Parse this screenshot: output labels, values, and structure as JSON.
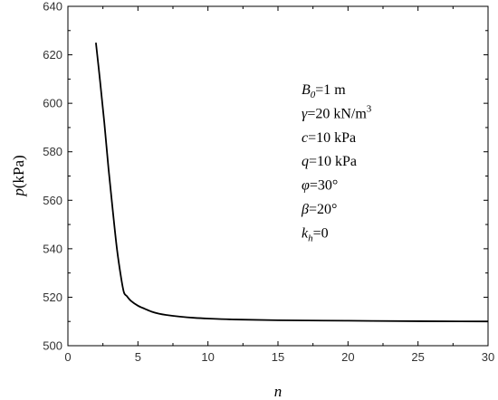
{
  "chart_data": {
    "type": "line",
    "xlim": [
      0,
      30
    ],
    "ylim": [
      500,
      640
    ],
    "x_ticks": [
      "0",
      "5",
      "10",
      "15",
      "20",
      "25",
      "30"
    ],
    "y_ticks": [
      "500",
      "520",
      "540",
      "560",
      "580",
      "600",
      "620",
      "640"
    ],
    "xlabel": "n",
    "ylabel": "p(kPa)",
    "grid": false,
    "series": [
      {
        "color": "#000000",
        "x": [
          2.0,
          2.3,
          2.6,
          2.9,
          3.2,
          3.5,
          3.8,
          4.0,
          4.2,
          4.5,
          5.0,
          5.5,
          6.0,
          6.5,
          7.0,
          8.0,
          9.0,
          10.0,
          12.0,
          15.0,
          20.0,
          25.0,
          30.0
        ],
        "y": [
          625,
          609,
          592,
          573,
          556,
          540,
          528,
          522,
          520.5,
          518.5,
          516.5,
          515.2,
          514.0,
          513.2,
          512.7,
          512.0,
          511.5,
          511.2,
          510.8,
          510.5,
          510.3,
          510.1,
          510.0
        ]
      }
    ],
    "annotations": [
      {
        "var": "B",
        "sub": "0",
        "rest": "=1 m"
      },
      {
        "var": "γ",
        "rest": "=20 kN/m",
        "sup": "3"
      },
      {
        "var": "c",
        "rest": "=10 kPa"
      },
      {
        "var": "q",
        "rest": "=10 kPa"
      },
      {
        "var": "φ",
        "rest": "=30°"
      },
      {
        "var": "β",
        "rest": "=20°"
      },
      {
        "var": "k",
        "sub": "h",
        "rest": "=0"
      }
    ]
  }
}
